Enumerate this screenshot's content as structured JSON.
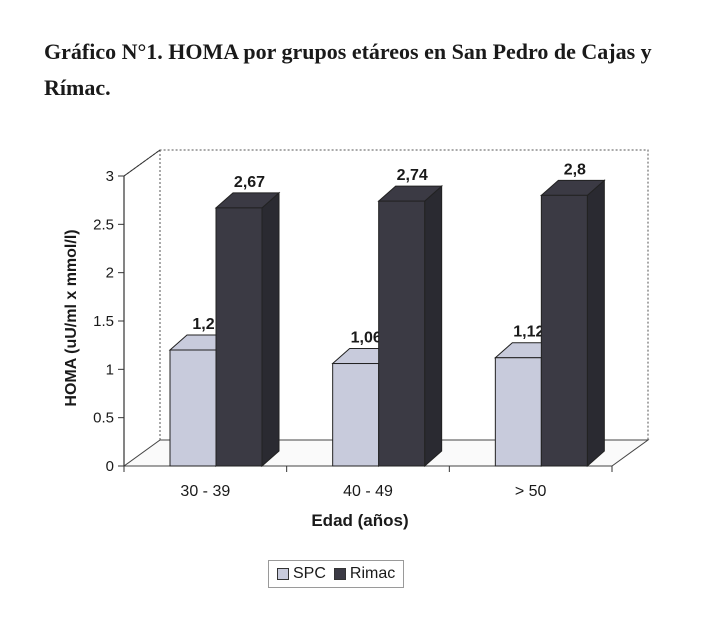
{
  "chart_data": {
    "type": "bar",
    "title": "Gráfico N°1. HOMA por grupos etáreos en San Pedro de Cajas y Rímac.",
    "xlabel": "Edad (años)",
    "ylabel": "HOMA (uU/ml x mmol/l)",
    "categories": [
      "30 - 39",
      "40 - 49",
      "> 50"
    ],
    "ylim": [
      0,
      3
    ],
    "yticks": [
      "0",
      "0.5",
      "1",
      "1.5",
      "2",
      "2.5",
      "3"
    ],
    "series": [
      {
        "name": "SPC",
        "values": [
          1.2,
          1.06,
          1.12
        ],
        "labels": [
          "1,2",
          "1,06",
          "1,12"
        ],
        "color": "#c8cbdc"
      },
      {
        "name": "Rimac",
        "values": [
          2.67,
          2.74,
          2.8
        ],
        "labels": [
          "2,67",
          "2,74",
          "2,8"
        ],
        "color": "#3b3a44"
      }
    ],
    "legend_position": "bottom",
    "style": "3d-column"
  }
}
